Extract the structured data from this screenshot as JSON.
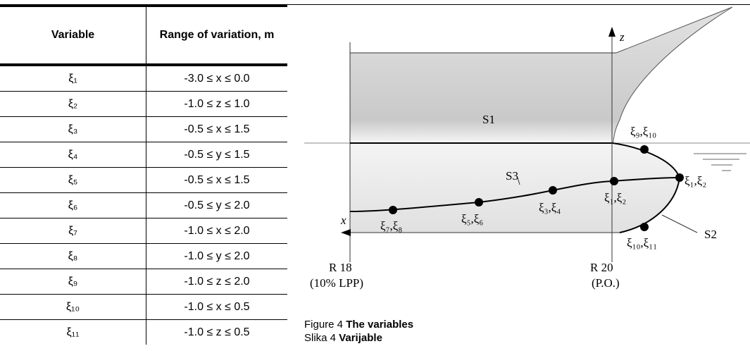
{
  "table": {
    "header": [
      "Variable",
      "Range of variation, m"
    ],
    "rows": [
      [
        "ξ₁",
        "-3.0 ≤ x ≤ 0.0"
      ],
      [
        "ξ₂",
        "-1.0 ≤ z ≤ 1.0"
      ],
      [
        "ξ₃",
        "-0.5 ≤ x ≤ 1.5"
      ],
      [
        "ξ₄",
        "-0.5 ≤ y ≤ 1.5"
      ],
      [
        "ξ₅",
        "-0.5 ≤ x ≤ 1.5"
      ],
      [
        "ξ₆",
        "-0.5 ≤ y ≤ 2.0"
      ],
      [
        "ξ₇",
        "-1.0 ≤ x ≤ 2.0"
      ],
      [
        "ξ₈",
        "-1.0 ≤ y ≤ 2.0"
      ],
      [
        "ξ₉",
        "-1.0 ≤ z ≤ 2.0"
      ],
      [
        "ξ₁₀",
        "-1.0 ≤ x ≤ 0.5"
      ],
      [
        "ξ₁₁",
        "-1.0 ≤ z ≤ 0.5"
      ]
    ]
  },
  "figure": {
    "labels": {
      "z": "z",
      "s1": "S1",
      "p9_10": "ξ₉,ξ₁₀",
      "p1_2_right": "ξ₁,ξ₂",
      "s3": "S3",
      "p1_2": "ξ₁,ξ₂",
      "p3_4": "ξ₃,ξ₄",
      "p5_6": "ξ₅,ξ₆",
      "p7_8": "ξ₇,ξ₈",
      "x": "x",
      "s2": "S2",
      "p10_11": "ξ₁₀,ξ₁₁",
      "r18": "R 18",
      "r18_note": "(10% LPP)",
      "r20": "R 20",
      "r20_note": "(P.O.)"
    },
    "caption": [
      {
        "label": "Figure 4",
        "title": "The variables"
      },
      {
        "label": "Slika 4",
        "title": "Varijable"
      }
    ]
  }
}
